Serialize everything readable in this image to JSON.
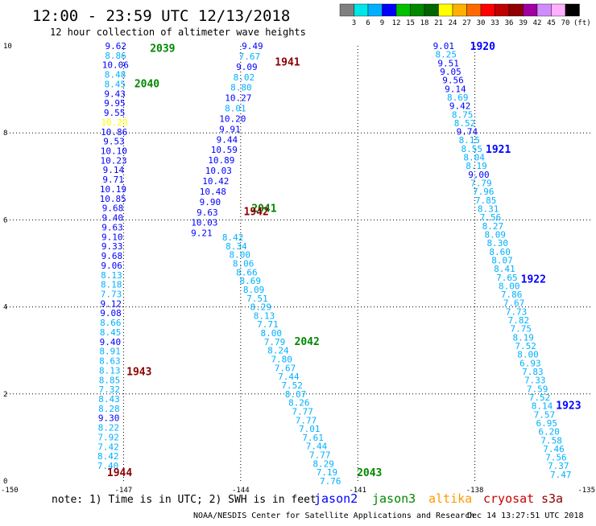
{
  "header": {
    "title": "12:00 - 23:59 UTC 12/13/2018",
    "subtitle": "12 hour collection of altimeter wave heights",
    "units": "(ft)"
  },
  "colorbar": {
    "colors": [
      "#7f7f7f",
      "#00e5e5",
      "#00b0ff",
      "#0000ff",
      "#00c000",
      "#008800",
      "#006400",
      "#ffff00",
      "#ffb000",
      "#ff6a00",
      "#ff0000",
      "#c00000",
      "#900000",
      "#a000a0",
      "#d08cff",
      "#ffb0ff",
      "#000000"
    ],
    "labels": [
      "3",
      "6",
      "9",
      "12",
      "15",
      "18",
      "21",
      "24",
      "27",
      "30",
      "33",
      "36",
      "39",
      "42",
      "45",
      "70"
    ]
  },
  "footer": {
    "note": "note: 1) Time is in UTC; 2) SWH is in feet",
    "credit": "NOAA/NESDIS Center for Satellite Applications and Research",
    "timestamp": "Dec 14 13:27:51 UTC 2018",
    "legend": [
      {
        "name": "jason2",
        "color": "#0000ff"
      },
      {
        "name": "jason3",
        "color": "#008800"
      },
      {
        "name": "altika",
        "color": "#ff9900"
      },
      {
        "name": "cryosat",
        "color": "#cc0000"
      },
      {
        "name": "s3a",
        "color": "#8b0000"
      }
    ]
  },
  "chart_data": {
    "type": "scatter",
    "xlim": [
      -150,
      -135
    ],
    "ylim": [
      0,
      10
    ],
    "xticks": [
      "-150",
      "-147",
      "-144",
      "-141",
      "-138",
      "-135"
    ],
    "yticks": [
      "0",
      "2",
      "4",
      "6",
      "8",
      "10"
    ],
    "grid": true,
    "time_labels": [
      {
        "text": "2039",
        "x": -146.0,
        "y": 9.95,
        "color": "#008800"
      },
      {
        "text": "1941",
        "x": -142.8,
        "y": 9.64,
        "color": "#8b0000"
      },
      {
        "text": "2040",
        "x": -146.4,
        "y": 9.14,
        "color": "#008800"
      },
      {
        "text": "2041",
        "x": -143.4,
        "y": 6.28,
        "color": "#008800"
      },
      {
        "text": "1942",
        "x": -143.6,
        "y": 6.2,
        "color": "#8b0000"
      },
      {
        "text": "2042",
        "x": -142.3,
        "y": 3.22,
        "color": "#008800"
      },
      {
        "text": "1943",
        "x": -146.6,
        "y": 2.52,
        "color": "#8b0000"
      },
      {
        "text": "2043",
        "x": -140.7,
        "y": 0.2,
        "color": "#008800"
      },
      {
        "text": "1944",
        "x": -147.1,
        "y": 0.2,
        "color": "#8b0000"
      },
      {
        "text": "1920",
        "x": -137.8,
        "y": 10.0,
        "color": "#0000ff"
      },
      {
        "text": "1921",
        "x": -137.4,
        "y": 7.63,
        "color": "#0000ff"
      },
      {
        "text": "1922",
        "x": -136.5,
        "y": 4.65,
        "color": "#0000ff"
      },
      {
        "text": "1923",
        "x": -135.6,
        "y": 1.75,
        "color": "#0000ff"
      }
    ],
    "series": [
      {
        "track": "A",
        "x0": -147.2,
        "y0": 10.0,
        "x1": -147.4,
        "y1": 0.35,
        "values": [
          "9.62",
          "8.86",
          "10.06",
          "8.48",
          "8.45",
          "9.43",
          "9.95",
          "9.55",
          "10.28",
          "10.86",
          "9.53",
          "10.10",
          "10.23",
          "9.14",
          "9.71",
          "10.19",
          "10.85",
          "9.68",
          "9.40",
          "9.63",
          "9.10",
          "9.33",
          "9.68",
          "9.06",
          "8.13",
          "8.18",
          "7.73",
          "9.12",
          "9.08",
          "8.66",
          "8.45",
          "9.40",
          "8.91",
          "8.63",
          "8.13",
          "8.85",
          "7.32",
          "8.43",
          "8.28",
          "9.30",
          "8.22",
          "7.92",
          "7.42",
          "8.42",
          "7.40"
        ],
        "colors": [
          "#0000ff",
          "#00b0ff",
          "#0000ff",
          "#00b0ff",
          "#00b0ff",
          "#0000ff",
          "#0000ff",
          "#0000ff",
          "#ffff00",
          "#0000ff",
          "#0000ff",
          "#0000ff",
          "#0000ff",
          "#0000ff",
          "#0000ff",
          "#0000ff",
          "#0000ff",
          "#0000ff",
          "#0000ff",
          "#0000ff",
          "#0000ff",
          "#0000ff",
          "#0000ff",
          "#0000ff",
          "#00b0ff",
          "#00b0ff",
          "#00b0ff",
          "#0000ff",
          "#0000ff",
          "#00b0ff",
          "#00b0ff",
          "#0000ff",
          "#00b0ff",
          "#00b0ff",
          "#00b0ff",
          "#00b0ff",
          "#00b0ff",
          "#00b0ff",
          "#00b0ff",
          "#0000ff",
          "#00b0ff",
          "#00b0ff",
          "#00b0ff",
          "#00b0ff",
          "#00b0ff"
        ]
      },
      {
        "track": "B",
        "x0": -143.7,
        "y0": 10.0,
        "x1": -145.0,
        "y1": 5.7,
        "values": [
          "9.49",
          "7.67",
          "9.09",
          "8.02",
          "8.80",
          "10.27",
          "8.01",
          "10.20",
          "9.91",
          "9.44",
          "10.59",
          "10.89",
          "10.03",
          "10.42",
          "10.48",
          "9.90",
          "9.63",
          "10.03",
          "9.21"
        ],
        "colors": [
          "#0000ff",
          "#00b0ff",
          "#0000ff",
          "#00b0ff",
          "#00b0ff",
          "#0000ff",
          "#00b0ff",
          "#0000ff",
          "#0000ff",
          "#0000ff",
          "#0000ff",
          "#0000ff",
          "#0000ff",
          "#0000ff",
          "#0000ff",
          "#0000ff",
          "#0000ff",
          "#0000ff",
          "#0000ff"
        ]
      },
      {
        "track": "C",
        "x0": -144.2,
        "y0": 5.6,
        "x1": -141.7,
        "y1": 0.0,
        "values": [
          "8.42",
          "8.34",
          "8.00",
          "8.06",
          "8.66",
          "8.69",
          "8.09",
          "7.51",
          "8.29",
          "8.13",
          "7.71",
          "8.00",
          "7.79",
          "8.24",
          "7.80",
          "7.67",
          "7.44",
          "7.52",
          "8.07",
          "8.26",
          "7.77",
          "7.77",
          "7.01",
          "7.61",
          "7.44",
          "7.77",
          "8.29",
          "7.19",
          "7.76"
        ],
        "colors": [
          "#00b0ff",
          "#00b0ff",
          "#00b0ff",
          "#00b0ff",
          "#00b0ff",
          "#00b0ff",
          "#00b0ff",
          "#00b0ff",
          "#00b0ff",
          "#00b0ff",
          "#00b0ff",
          "#00b0ff",
          "#00b0ff",
          "#00b0ff",
          "#00b0ff",
          "#00b0ff",
          "#00b0ff",
          "#00b0ff",
          "#00b0ff",
          "#00b0ff",
          "#00b0ff",
          "#00b0ff",
          "#00b0ff",
          "#00b0ff",
          "#00b0ff",
          "#00b0ff",
          "#00b0ff",
          "#00b0ff",
          "#00b0ff"
        ]
      },
      {
        "track": "D",
        "x0": -138.8,
        "y0": 10.0,
        "x1": -135.8,
        "y1": 0.15,
        "values": [
          "9.01",
          "8.25",
          "9.51",
          "9.05",
          "9.56",
          "9.14",
          "8.69",
          "9.42",
          "8.75",
          "8.52",
          "9.74",
          "8.15",
          "8.55",
          "8.04",
          "8.19",
          "9.00",
          "7.79",
          "7.96",
          "7.85",
          "8.31",
          "7.56",
          "8.27",
          "8.09",
          "8.30",
          "8.60",
          "8.07",
          "8.41",
          "7.65",
          "8.00",
          "7.86",
          "7.67",
          "7.73",
          "7.82",
          "7.75",
          "8.19",
          "7.52",
          "8.00",
          "6.93",
          "7.83",
          "7.33",
          "7.59",
          "7.52",
          "8.14",
          "7.57",
          "6.95",
          "6.20",
          "7.58",
          "7.46",
          "7.56",
          "7.37",
          "7.47"
        ],
        "colors": [
          "#0000ff",
          "#00b0ff",
          "#0000ff",
          "#0000ff",
          "#0000ff",
          "#0000ff",
          "#00b0ff",
          "#0000ff",
          "#00b0ff",
          "#00b0ff",
          "#0000ff",
          "#00b0ff",
          "#00b0ff",
          "#00b0ff",
          "#00b0ff",
          "#0000ff",
          "#00b0ff",
          "#00b0ff",
          "#00b0ff",
          "#00b0ff",
          "#00b0ff",
          "#00b0ff",
          "#00b0ff",
          "#00b0ff",
          "#00b0ff",
          "#00b0ff",
          "#00b0ff",
          "#00b0ff",
          "#00b0ff",
          "#00b0ff",
          "#00b0ff",
          "#00b0ff",
          "#00b0ff",
          "#00b0ff",
          "#00b0ff",
          "#00b0ff",
          "#00b0ff",
          "#00b0ff",
          "#00b0ff",
          "#00b0ff",
          "#00b0ff",
          "#00b0ff",
          "#00b0ff",
          "#00b0ff",
          "#00b0ff",
          "#00b0ff",
          "#00b0ff",
          "#00b0ff",
          "#00b0ff",
          "#00b0ff",
          "#00b0ff"
        ]
      }
    ]
  }
}
